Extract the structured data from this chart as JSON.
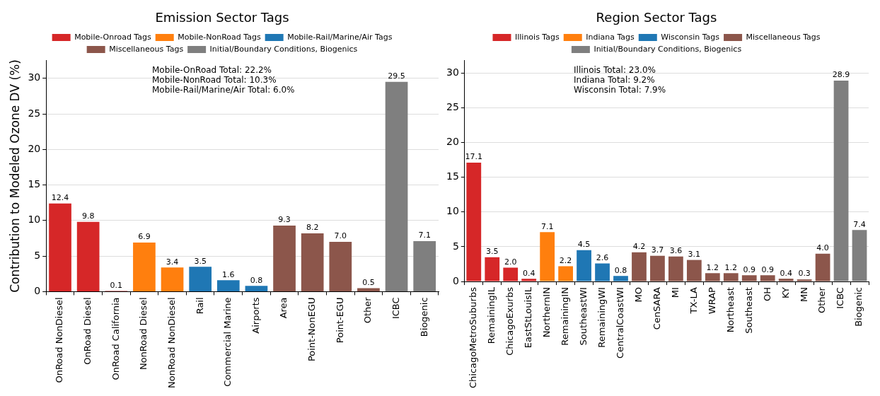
{
  "chart_data": [
    {
      "type": "bar",
      "title": "Emission Sector Tags",
      "ylabel": "Contribution to Modeled Ozone DV (%)",
      "categories": [
        "OnRoad NonDiesel",
        "OnRoad Diesel",
        "OnRoad California",
        "NonRoad Diesel",
        "NonRoad NonDiesel",
        "Rail",
        "Commercial Marine",
        "Airports",
        "Area",
        "Point-NonEGU",
        "Point-EGU",
        "Other",
        "ICBC",
        "Biogenic"
      ],
      "series": [
        {
          "name": "Mobile-Onroad Tags",
          "color": "#d62728",
          "values": [
            12.4,
            9.8,
            0.1,
            null,
            null,
            null,
            null,
            null,
            null,
            null,
            null,
            null,
            null,
            null
          ],
          "value_labels": [
            "12.4",
            "9.8",
            "0.1",
            null,
            null,
            null,
            null,
            null,
            null,
            null,
            null,
            null,
            null,
            null
          ]
        },
        {
          "name": "Mobile-NonRoad Tags",
          "color": "#ff7f0e",
          "values": [
            null,
            null,
            null,
            6.9,
            3.4,
            null,
            null,
            null,
            null,
            null,
            null,
            null,
            null,
            null
          ],
          "value_labels": [
            null,
            null,
            null,
            "6.9",
            "3.4",
            null,
            null,
            null,
            null,
            null,
            null,
            null,
            null,
            null
          ]
        },
        {
          "name": "Mobile-Rail/Marine/Air Tags",
          "color": "#1f77b4",
          "values": [
            null,
            null,
            null,
            null,
            null,
            3.5,
            1.6,
            0.8,
            null,
            null,
            null,
            null,
            null,
            null
          ],
          "value_labels": [
            null,
            null,
            null,
            null,
            null,
            "3.5",
            "1.6",
            "0.8",
            null,
            null,
            null,
            null,
            null,
            null
          ]
        },
        {
          "name": "Miscellaneous Tags",
          "color": "#8c564b",
          "values": [
            null,
            null,
            null,
            null,
            null,
            null,
            null,
            null,
            9.3,
            8.2,
            7.0,
            0.5,
            null,
            null
          ],
          "value_labels": [
            null,
            null,
            null,
            null,
            null,
            null,
            null,
            null,
            "9.3",
            "8.2",
            "7.0",
            "0.5",
            null,
            null
          ]
        },
        {
          "name": "Initial/Boundary Conditions, Biogenics",
          "color": "#7f7f7f",
          "values": [
            null,
            null,
            null,
            null,
            null,
            null,
            null,
            null,
            null,
            null,
            null,
            null,
            29.5,
            7.1
          ],
          "value_labels": [
            null,
            null,
            null,
            null,
            null,
            null,
            null,
            null,
            null,
            null,
            null,
            null,
            "29.5",
            "7.1"
          ]
        }
      ],
      "ylim": [
        0,
        32.5
      ],
      "yticks": [
        0,
        5,
        10,
        15,
        20,
        25,
        30
      ],
      "grid": "y",
      "legend": "top",
      "annotations": [
        "Mobile-OnRoad Total: 22.2%",
        "Mobile-NonRoad Total: 10.3%",
        "Mobile-Rail/Marine/Air Total: 6.0%"
      ]
    },
    {
      "type": "bar",
      "title": "Region Sector Tags",
      "categories": [
        "ChicagoMetroSuburbs",
        "RemainingIL",
        "ChicagoExurbs",
        "EastStLouisIL",
        "NorthernIN",
        "RemainingIN",
        "SoutheastWI",
        "RemainingWI",
        "CentralCoastWI",
        "MO",
        "CenSARA",
        "MI",
        "TX-LA",
        "WRAP",
        "Northeast",
        "Southeast",
        "OH",
        "KY",
        "MN",
        "Other",
        "ICBC",
        "Biogenic"
      ],
      "series": [
        {
          "name": "Illinois Tags",
          "color": "#d62728",
          "values": [
            17.1,
            3.5,
            2.0,
            0.4,
            null,
            null,
            null,
            null,
            null,
            null,
            null,
            null,
            null,
            null,
            null,
            null,
            null,
            null,
            null,
            null,
            null,
            null
          ],
          "value_labels": [
            "17.1",
            "3.5",
            "2.0",
            "0.4",
            null,
            null,
            null,
            null,
            null,
            null,
            null,
            null,
            null,
            null,
            null,
            null,
            null,
            null,
            null,
            null,
            null,
            null
          ]
        },
        {
          "name": "Indiana Tags",
          "color": "#ff7f0e",
          "values": [
            null,
            null,
            null,
            null,
            7.1,
            2.2,
            null,
            null,
            null,
            null,
            null,
            null,
            null,
            null,
            null,
            null,
            null,
            null,
            null,
            null,
            null,
            null
          ],
          "value_labels": [
            null,
            null,
            null,
            null,
            "7.1",
            "2.2",
            null,
            null,
            null,
            null,
            null,
            null,
            null,
            null,
            null,
            null,
            null,
            null,
            null,
            null,
            null,
            null
          ]
        },
        {
          "name": "Wisconsin Tags",
          "color": "#1f77b4",
          "values": [
            null,
            null,
            null,
            null,
            null,
            null,
            4.5,
            2.6,
            0.8,
            null,
            null,
            null,
            null,
            null,
            null,
            null,
            null,
            null,
            null,
            null,
            null,
            null
          ],
          "value_labels": [
            null,
            null,
            null,
            null,
            null,
            null,
            "4.5",
            "2.6",
            "0.8",
            null,
            null,
            null,
            null,
            null,
            null,
            null,
            null,
            null,
            null,
            null,
            null,
            null
          ]
        },
        {
          "name": "Miscellaneous Tags",
          "color": "#8c564b",
          "values": [
            null,
            null,
            null,
            null,
            null,
            null,
            null,
            null,
            null,
            4.2,
            3.7,
            3.6,
            3.1,
            1.2,
            1.2,
            0.9,
            0.9,
            0.4,
            0.3,
            4.0,
            null,
            null
          ],
          "value_labels": [
            null,
            null,
            null,
            null,
            null,
            null,
            null,
            null,
            null,
            "4.2",
            "3.7",
            "3.6",
            "3.1",
            "1.2",
            "1.2",
            "0.9",
            "0.9",
            "0.4",
            "0.3",
            "4.0",
            null,
            null
          ]
        },
        {
          "name": "Initial/Boundary Conditions, Biogenics",
          "color": "#7f7f7f",
          "values": [
            null,
            null,
            null,
            null,
            null,
            null,
            null,
            null,
            null,
            null,
            null,
            null,
            null,
            null,
            null,
            null,
            null,
            null,
            null,
            null,
            28.9,
            7.4
          ],
          "value_labels": [
            null,
            null,
            null,
            null,
            null,
            null,
            null,
            null,
            null,
            null,
            null,
            null,
            null,
            null,
            null,
            null,
            null,
            null,
            null,
            null,
            "28.9",
            "7.4"
          ]
        }
      ],
      "ylim": [
        0,
        31.8
      ],
      "yticks": [
        0,
        5,
        10,
        15,
        20,
        25,
        30
      ],
      "grid": "y",
      "legend": "top",
      "annotations": [
        "Illinois Total: 23.0%",
        "Indiana Total: 9.2%",
        "Wisconsin Total: 7.9%"
      ]
    }
  ]
}
